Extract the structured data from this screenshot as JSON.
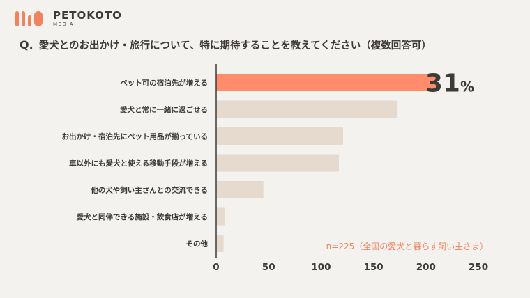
{
  "brand": {
    "name": "PETOKOTO",
    "sub": "MEDIA",
    "accent": "#f0825e"
  },
  "question": {
    "prefix": "Q.",
    "text": "愛犬とのお出かけ・旅行について、特に期待することを教えてください（複数回答可）"
  },
  "chart_data": {
    "type": "bar",
    "orientation": "horizontal",
    "categories": [
      "ペット可の宿泊先が増える",
      "愛犬と常に一緒に過ごせる",
      "お出かけ・宿泊先にペット用品が揃っている",
      "車以外にも愛犬と使える移動手段が増える",
      "他の犬や飼い主さんとの交流できる",
      "愛犬と同伴できる施設・飲食店が増える",
      "その他"
    ],
    "values": [
      210,
      173,
      121,
      117,
      45,
      8,
      7
    ],
    "xlim": [
      0,
      250
    ],
    "xticks": [
      0,
      50,
      100,
      150,
      200,
      250
    ],
    "highlight_index": 0,
    "highlight_label": {
      "number": "31",
      "unit": "%"
    },
    "colors": {
      "highlight": "#ff8c6b",
      "default": "#e6dace",
      "axis": "#3d3a38"
    },
    "note": "n=225（全国の愛犬と暮らす飼い主さま）"
  }
}
